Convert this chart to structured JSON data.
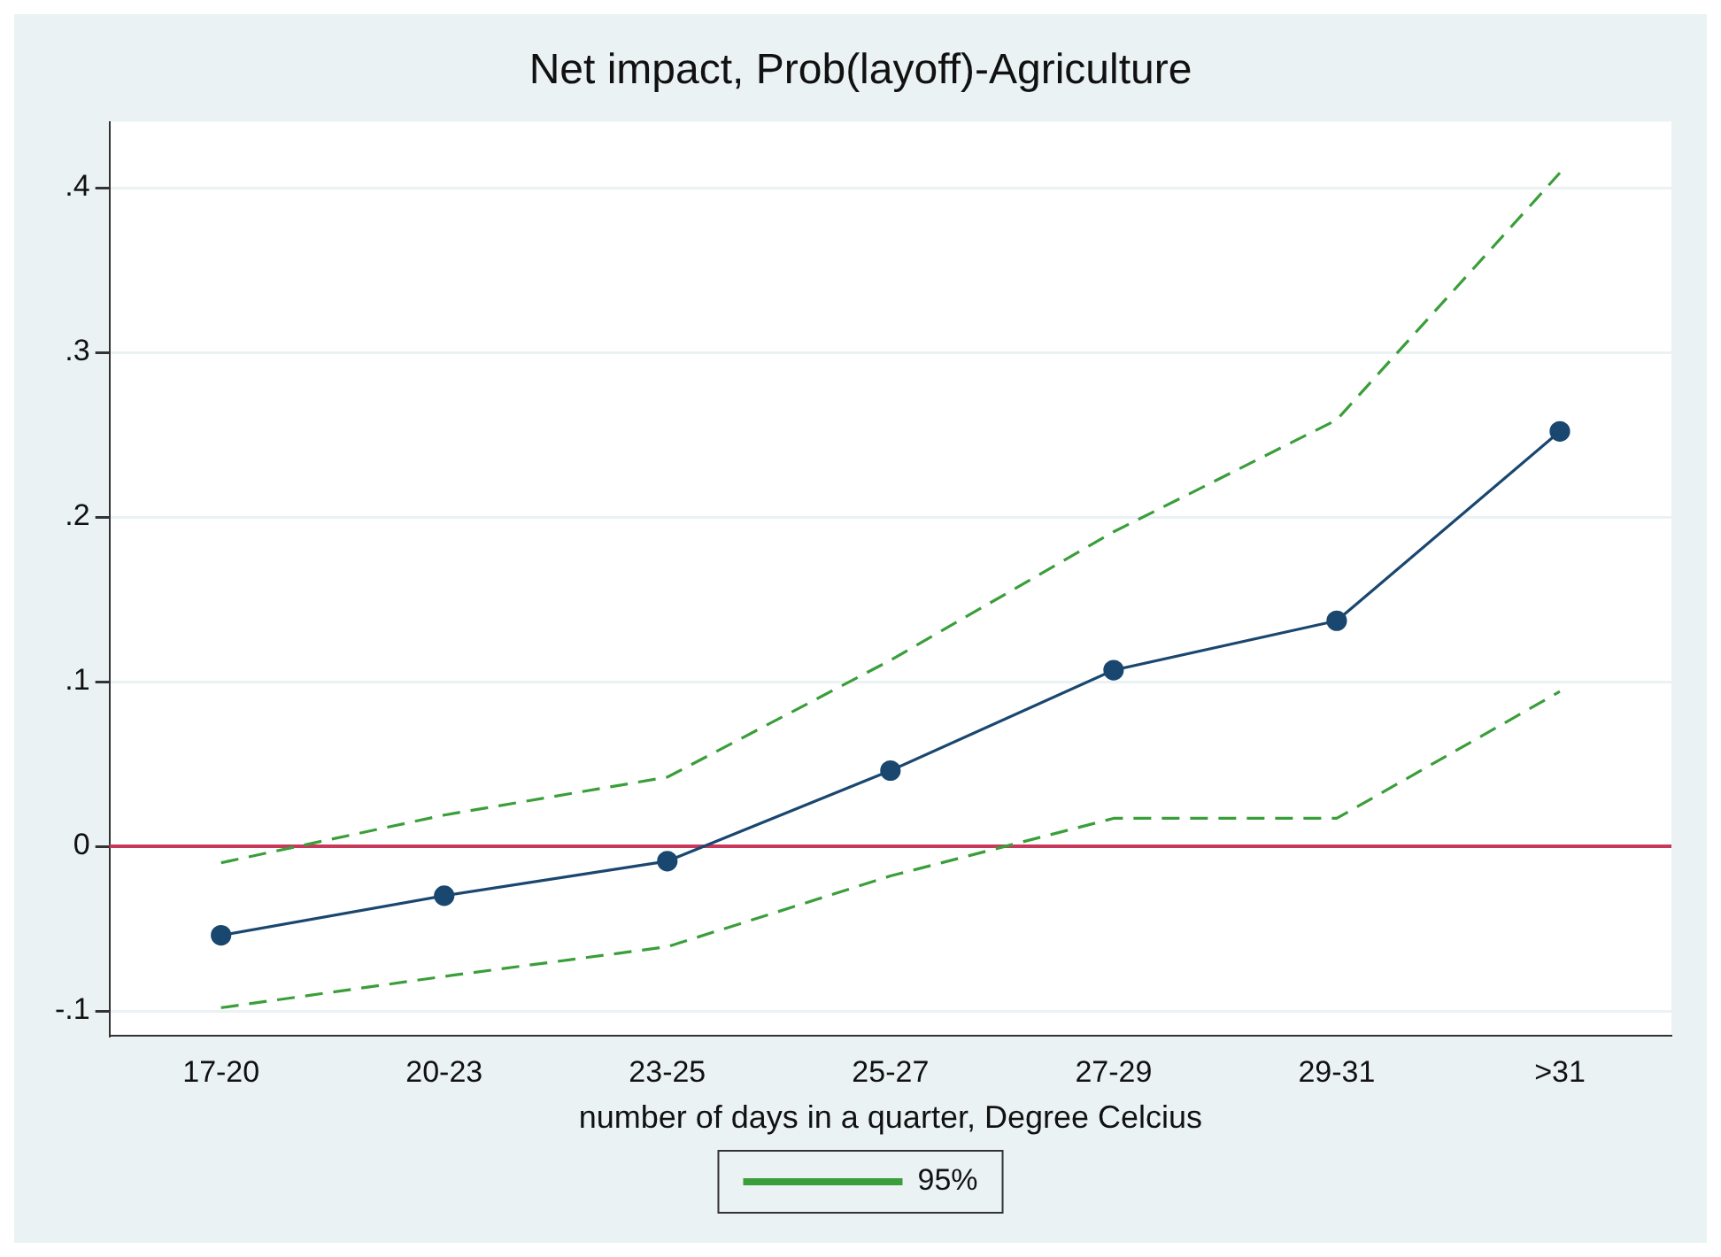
{
  "chart_data": {
    "type": "line",
    "title": "Net impact, Prob(layoff)-Agriculture",
    "xlabel": "number of days in a quarter, Degree Celcius",
    "categories": [
      "17-20",
      "20-23",
      "23-25",
      "25-27",
      "27-29",
      "29-31",
      ">31"
    ],
    "series": [
      {
        "color": "#1a476f",
        "values": [
          -0.054,
          -0.03,
          -0.009,
          0.046,
          0.107,
          0.137,
          0.252
        ],
        "marker": "circle",
        "line_style": "solid"
      },
      {
        "name": "95%",
        "color": "#3a9e3a",
        "values": [
          -0.01,
          0.019,
          0.042,
          0.113,
          0.191,
          0.259,
          0.409
        ],
        "marker": "none",
        "line_style": "dashed"
      },
      {
        "color": "#3a9e3a",
        "values": [
          -0.098,
          -0.079,
          -0.061,
          -0.018,
          0.017,
          0.017,
          0.094
        ],
        "marker": "none",
        "line_style": "dashed"
      }
    ],
    "ylim": [
      -0.115,
      0.44
    ],
    "yticks": [
      {
        "value": -0.1,
        "label": "-.1"
      },
      0,
      {
        "value": 0.1,
        "label": ".1"
      },
      {
        "value": 0.2,
        "label": ".2"
      },
      {
        "value": 0.3,
        "label": ".3"
      },
      {
        "value": 0.4,
        "label": ".4"
      }
    ],
    "grid": "y",
    "legend": "bottom",
    "ref_lines": [
      {
        "axis": "y",
        "value": 0,
        "color": "#c8385a",
        "line_style": "solid"
      }
    ]
  }
}
